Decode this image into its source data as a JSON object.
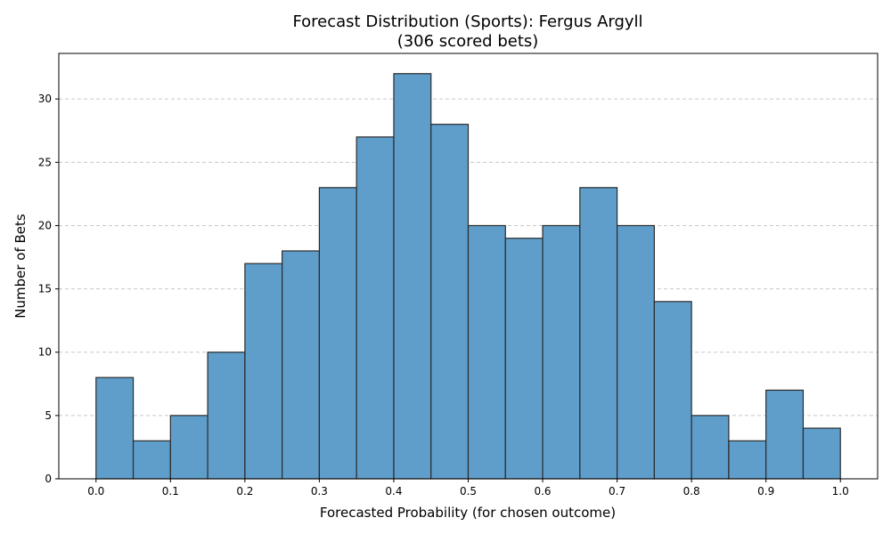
{
  "chart_data": {
    "type": "bar",
    "title": "Forecast Distribution (Sports): Fergus Argyll",
    "subtitle": "(306 scored bets)",
    "xlabel": "Forecasted Probability (for chosen outcome)",
    "ylabel": "Number of Bets",
    "bin_edges": [
      0.0,
      0.05,
      0.1,
      0.15,
      0.2,
      0.25,
      0.3,
      0.35,
      0.4,
      0.45,
      0.5,
      0.55,
      0.6,
      0.65,
      0.7,
      0.75,
      0.8,
      0.85,
      0.9,
      0.95,
      1.0
    ],
    "values": [
      8,
      3,
      5,
      10,
      17,
      18,
      23,
      27,
      32,
      28,
      20,
      19,
      20,
      23,
      20,
      14,
      5,
      3,
      7,
      4
    ],
    "xlim": [
      -0.05,
      1.05
    ],
    "ylim": [
      0,
      33.6
    ],
    "xticks": [
      "0.0",
      "0.1",
      "0.2",
      "0.3",
      "0.4",
      "0.5",
      "0.6",
      "0.7",
      "0.8",
      "0.9",
      "1.0"
    ],
    "xtick_values": [
      0.0,
      0.1,
      0.2,
      0.3,
      0.4,
      0.5,
      0.6,
      0.7,
      0.8,
      0.9,
      1.0
    ],
    "yticks": [
      "0",
      "5",
      "10",
      "15",
      "20",
      "25",
      "30"
    ],
    "ytick_values": [
      0,
      5,
      10,
      15,
      20,
      25,
      30
    ],
    "grid": "y-dashed",
    "colors": {
      "bar_fill": "#5f9ecb",
      "bar_edge": "#2b2b2b"
    }
  }
}
